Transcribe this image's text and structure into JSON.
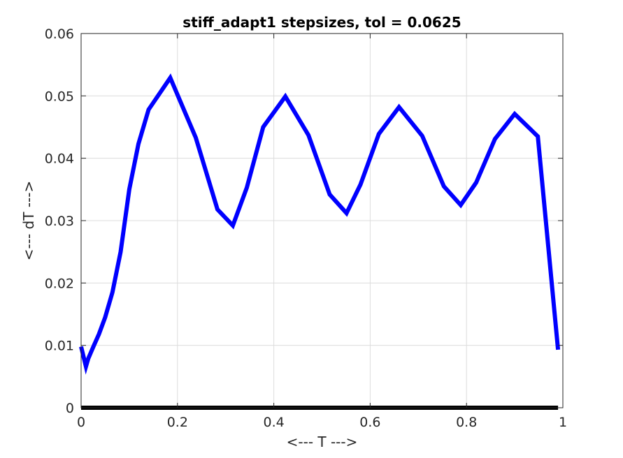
{
  "chart_data": {
    "type": "line",
    "title": "stiff_adapt1 stepsizes, tol = 0.0625",
    "xlabel": "<--- T --->",
    "ylabel": "<--- dT --->",
    "xlim": [
      0,
      1
    ],
    "ylim": [
      0,
      0.06
    ],
    "xticks": [
      0,
      0.2,
      0.4,
      0.6,
      0.8,
      1
    ],
    "xtick_labels": [
      "0",
      "0.2",
      "0.4",
      "0.6",
      "0.8",
      "1"
    ],
    "yticks": [
      0,
      0.01,
      0.02,
      0.03,
      0.04,
      0.05,
      0.06
    ],
    "ytick_labels": [
      "0",
      "0.01",
      "0.02",
      "0.03",
      "0.04",
      "0.05",
      "0.06"
    ],
    "grid": true,
    "series": [
      {
        "color": "#0000ff",
        "x": [
          0,
          0.01,
          0.015,
          0.025,
          0.037,
          0.05,
          0.065,
          0.082,
          0.1,
          0.119,
          0.14,
          0.185,
          0.238,
          0.283,
          0.315,
          0.344,
          0.378,
          0.424,
          0.472,
          0.516,
          0.551,
          0.58,
          0.618,
          0.66,
          0.708,
          0.753,
          0.788,
          0.82,
          0.859,
          0.9,
          0.948,
          0.99
        ],
        "y": [
          0.0098,
          0.0066,
          0.0079,
          0.0097,
          0.0118,
          0.0145,
          0.0185,
          0.025,
          0.035,
          0.0423,
          0.0478,
          0.0529,
          0.0433,
          0.0318,
          0.0292,
          0.0353,
          0.045,
          0.0499,
          0.0437,
          0.0342,
          0.0312,
          0.0358,
          0.0439,
          0.0482,
          0.0436,
          0.0355,
          0.0325,
          0.0361,
          0.0431,
          0.0471,
          0.0435,
          0.0093
        ]
      },
      {
        "color": "#000000",
        "x": [
          0,
          0.99
        ],
        "y": [
          0,
          0
        ]
      }
    ]
  }
}
